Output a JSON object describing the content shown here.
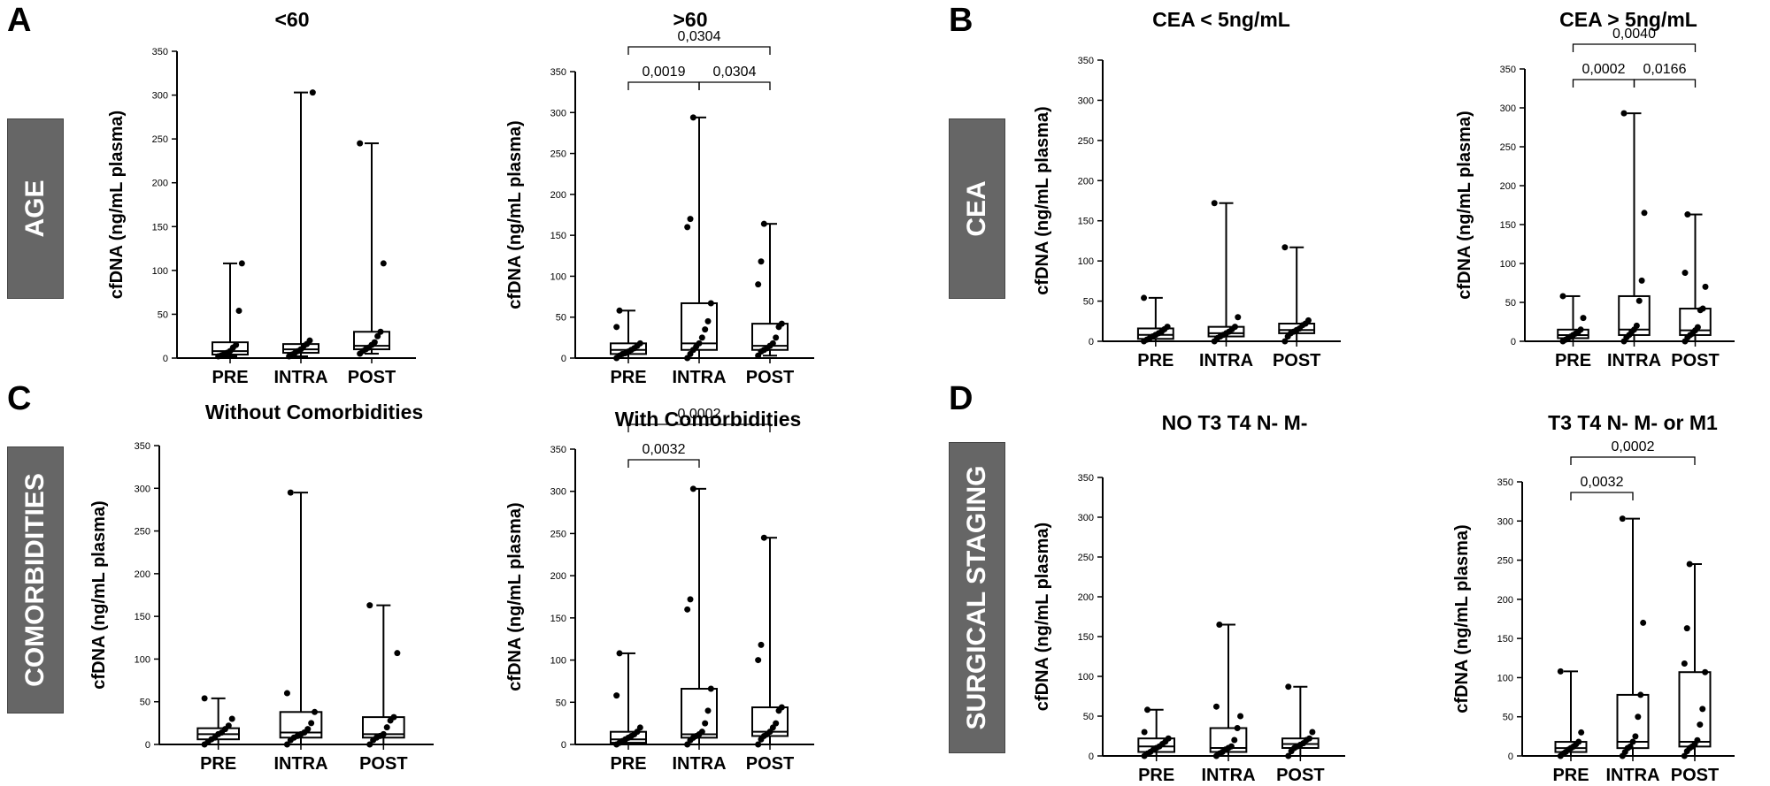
{
  "panel_letters": [
    "A",
    "B",
    "C",
    "D"
  ],
  "side_labels": {
    "A": "AGE",
    "B": "CEA",
    "C": "COMORBIDITIES",
    "D": "SURGICAL STAGING"
  },
  "colors": {
    "ink": "#000000",
    "box_fill": "#ffffff",
    "side_box": "#666666",
    "side_text": "#ffffff"
  },
  "chart_data": [
    {
      "id": "a1",
      "type": "box",
      "title": "<60",
      "ylabel": "cfDNA (ng/mL plasma)",
      "ylim": [
        0,
        350
      ],
      "yticks": [
        0,
        50,
        100,
        150,
        200,
        250,
        300,
        350
      ],
      "categories": [
        "PRE",
        "INTRA",
        "POST"
      ],
      "boxes": [
        {
          "min": 2,
          "q1": 4,
          "median": 8,
          "q3": 18,
          "max": 108,
          "points": [
            2,
            3,
            5,
            6,
            8,
            12,
            15,
            54,
            108
          ]
        },
        {
          "min": 2,
          "q1": 6,
          "median": 10,
          "q3": 16,
          "max": 303,
          "points": [
            2,
            4,
            6,
            8,
            10,
            14,
            16,
            20,
            303
          ]
        },
        {
          "min": 5,
          "q1": 10,
          "median": 14,
          "q3": 30,
          "max": 245,
          "points": [
            5,
            8,
            10,
            12,
            15,
            18,
            25,
            30,
            108,
            245
          ]
        }
      ],
      "comparisons": []
    },
    {
      "id": "a2",
      "type": "box",
      "title": ">60",
      "ylabel": "cfDNA (ng/mL plasma)",
      "ylim": [
        0,
        350
      ],
      "yticks": [
        0,
        50,
        100,
        150,
        200,
        250,
        300,
        350
      ],
      "categories": [
        "PRE",
        "INTRA",
        "POST"
      ],
      "boxes": [
        {
          "min": 0,
          "q1": 5,
          "median": 10,
          "q3": 18,
          "max": 58,
          "points": [
            0,
            3,
            5,
            6,
            8,
            10,
            12,
            15,
            18,
            38,
            58
          ]
        },
        {
          "min": 0,
          "q1": 10,
          "median": 18,
          "q3": 67,
          "max": 294,
          "points": [
            0,
            5,
            10,
            14,
            18,
            25,
            35,
            45,
            67,
            160,
            170,
            294
          ]
        },
        {
          "min": 3,
          "q1": 10,
          "median": 15,
          "q3": 42,
          "max": 164,
          "points": [
            3,
            8,
            10,
            12,
            15,
            18,
            25,
            38,
            42,
            90,
            118,
            164
          ]
        }
      ],
      "comparisons": [
        {
          "from": 0,
          "to": 1,
          "label": "0,0019"
        },
        {
          "from": 1,
          "to": 2,
          "label": "0,0304"
        },
        {
          "from": 0,
          "to": 2,
          "label": "0,0304"
        }
      ]
    },
    {
      "id": "b1",
      "type": "box",
      "title": "CEA < 5ng/mL",
      "ylabel": "cfDNA (ng/mL plasma)",
      "ylim": [
        0,
        350
      ],
      "yticks": [
        0,
        50,
        100,
        150,
        200,
        250,
        300,
        350
      ],
      "categories": [
        "PRE",
        "INTRA",
        "POST"
      ],
      "boxes": [
        {
          "min": 0,
          "q1": 3,
          "median": 8,
          "q3": 16,
          "max": 54,
          "points": [
            0,
            2,
            4,
            6,
            8,
            10,
            12,
            15,
            18,
            54
          ]
        },
        {
          "min": 0,
          "q1": 6,
          "median": 10,
          "q3": 18,
          "max": 172,
          "points": [
            0,
            4,
            6,
            8,
            10,
            12,
            15,
            18,
            30,
            172
          ]
        },
        {
          "min": 0,
          "q1": 10,
          "median": 14,
          "q3": 22,
          "max": 117,
          "points": [
            0,
            6,
            10,
            12,
            14,
            16,
            20,
            22,
            26,
            117
          ]
        }
      ],
      "comparisons": []
    },
    {
      "id": "b2",
      "type": "box",
      "title": "CEA > 5ng/mL",
      "ylabel": "cfDNA (ng/mL plasma)",
      "ylim": [
        0,
        350
      ],
      "yticks": [
        0,
        50,
        100,
        150,
        200,
        250,
        300,
        350
      ],
      "categories": [
        "PRE",
        "INTRA",
        "POST"
      ],
      "boxes": [
        {
          "min": 0,
          "q1": 4,
          "median": 8,
          "q3": 15,
          "max": 58,
          "points": [
            0,
            2,
            4,
            6,
            8,
            10,
            12,
            15,
            30,
            58
          ]
        },
        {
          "min": 0,
          "q1": 8,
          "median": 15,
          "q3": 58,
          "max": 293,
          "points": [
            0,
            5,
            8,
            12,
            15,
            20,
            52,
            78,
            165,
            293
          ]
        },
        {
          "min": 0,
          "q1": 8,
          "median": 14,
          "q3": 42,
          "max": 163,
          "points": [
            0,
            5,
            8,
            10,
            14,
            18,
            40,
            42,
            70,
            88,
            163
          ]
        }
      ],
      "comparisons": [
        {
          "from": 0,
          "to": 1,
          "label": "0,0002"
        },
        {
          "from": 1,
          "to": 2,
          "label": "0,0166"
        },
        {
          "from": 0,
          "to": 2,
          "label": "0,0040"
        }
      ]
    },
    {
      "id": "c1",
      "type": "box",
      "title": "Without Comorbidities",
      "ylabel": "cfDNA (ng/mL plasma)",
      "ylim": [
        0,
        350
      ],
      "yticks": [
        0,
        50,
        100,
        150,
        200,
        250,
        300,
        350
      ],
      "categories": [
        "PRE",
        "INTRA",
        "POST"
      ],
      "boxes": [
        {
          "min": 0,
          "q1": 6,
          "median": 12,
          "q3": 19,
          "max": 54,
          "points": [
            0,
            3,
            6,
            8,
            12,
            14,
            18,
            22,
            30,
            54
          ]
        },
        {
          "min": 0,
          "q1": 8,
          "median": 14,
          "q3": 38,
          "max": 295,
          "points": [
            0,
            5,
            8,
            10,
            12,
            14,
            18,
            25,
            38,
            60,
            295
          ]
        },
        {
          "min": 0,
          "q1": 8,
          "median": 12,
          "q3": 32,
          "max": 163,
          "points": [
            0,
            5,
            8,
            10,
            12,
            20,
            28,
            32,
            107,
            163
          ]
        }
      ],
      "comparisons": []
    },
    {
      "id": "c2",
      "type": "box",
      "title": "With Comorbidities",
      "ylabel": "cfDNA (ng/mL plasma)",
      "ylim": [
        0,
        350
      ],
      "yticks": [
        0,
        50,
        100,
        150,
        200,
        250,
        300,
        350
      ],
      "categories": [
        "PRE",
        "INTRA",
        "POST"
      ],
      "boxes": [
        {
          "min": 0,
          "q1": 2,
          "median": 6,
          "q3": 15,
          "max": 108,
          "points": [
            0,
            2,
            4,
            6,
            8,
            10,
            12,
            15,
            20,
            58,
            108
          ]
        },
        {
          "min": 0,
          "q1": 8,
          "median": 12,
          "q3": 66,
          "max": 303,
          "points": [
            0,
            5,
            8,
            10,
            12,
            15,
            25,
            40,
            66,
            160,
            172,
            303
          ]
        },
        {
          "min": 0,
          "q1": 10,
          "median": 15,
          "q3": 44,
          "max": 245,
          "points": [
            0,
            6,
            10,
            12,
            15,
            20,
            25,
            40,
            44,
            100,
            118,
            245
          ]
        }
      ],
      "comparisons": [
        {
          "from": 0,
          "to": 1,
          "label": "0,0032"
        },
        {
          "from": 0,
          "to": 2,
          "label": "0,0002"
        }
      ]
    },
    {
      "id": "d1",
      "type": "box",
      "title": "NO T3 T4 N- M-",
      "ylabel": "cfDNA (ng/mL plasma)",
      "ylim": [
        0,
        350
      ],
      "yticks": [
        0,
        50,
        100,
        150,
        200,
        250,
        300,
        350
      ],
      "categories": [
        "PRE",
        "INTRA",
        "POST"
      ],
      "boxes": [
        {
          "min": 0,
          "q1": 5,
          "median": 12,
          "q3": 22,
          "max": 58,
          "points": [
            0,
            3,
            5,
            8,
            10,
            12,
            15,
            18,
            22,
            30,
            58
          ]
        },
        {
          "min": 0,
          "q1": 5,
          "median": 10,
          "q3": 35,
          "max": 165,
          "points": [
            0,
            3,
            5,
            8,
            10,
            12,
            20,
            35,
            50,
            62,
            165
          ]
        },
        {
          "min": 0,
          "q1": 10,
          "median": 15,
          "q3": 22,
          "max": 87,
          "points": [
            0,
            6,
            10,
            12,
            14,
            16,
            20,
            22,
            30,
            87
          ]
        }
      ],
      "comparisons": []
    },
    {
      "id": "d2",
      "type": "box",
      "title": "T3 T4 N- M- or M1",
      "ylabel": "cfDNA (ng/mL plasma)",
      "ylim": [
        0,
        350
      ],
      "yticks": [
        0,
        50,
        100,
        150,
        200,
        250,
        300,
        350
      ],
      "categories": [
        "PRE",
        "INTRA",
        "POST"
      ],
      "boxes": [
        {
          "min": 0,
          "q1": 5,
          "median": 10,
          "q3": 18,
          "max": 108,
          "points": [
            0,
            3,
            5,
            8,
            10,
            12,
            15,
            18,
            30,
            108
          ]
        },
        {
          "min": 0,
          "q1": 10,
          "median": 18,
          "q3": 78,
          "max": 303,
          "points": [
            0,
            5,
            10,
            12,
            18,
            25,
            50,
            78,
            170,
            303
          ]
        },
        {
          "min": 0,
          "q1": 12,
          "median": 18,
          "q3": 107,
          "max": 245,
          "points": [
            0,
            6,
            10,
            12,
            15,
            20,
            40,
            60,
            107,
            118,
            163,
            245
          ]
        }
      ],
      "comparisons": [
        {
          "from": 0,
          "to": 1,
          "label": "0,0032"
        },
        {
          "from": 0,
          "to": 2,
          "label": "0,0002"
        }
      ]
    }
  ]
}
